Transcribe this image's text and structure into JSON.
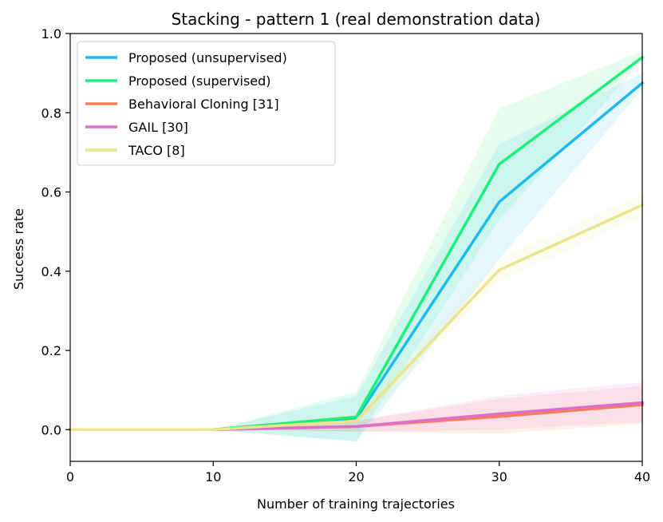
{
  "chart_data": {
    "type": "line",
    "title": "Stacking - pattern 1 (real demonstration data)",
    "xlabel": "Number of training trajectories",
    "ylabel": "Success rate",
    "x": [
      0,
      10,
      20,
      30,
      40
    ],
    "xlim": [
      0,
      40
    ],
    "ylim": [
      -0.08,
      1.0
    ],
    "xticks": [
      "0",
      "10",
      "20",
      "30",
      "40"
    ],
    "yticks": [
      "0.0",
      "0.2",
      "0.4",
      "0.6",
      "0.8",
      "1.0"
    ],
    "grid": false,
    "legend_position": "top-left",
    "series": [
      {
        "name": "Proposed (unsupervised)",
        "color": "#1ebbec",
        "values": [
          0.0,
          0.0,
          0.028,
          0.575,
          0.875
        ],
        "lower": [
          0.0,
          0.0,
          -0.03,
          0.43,
          0.86
        ],
        "upper": [
          0.0,
          0.0,
          0.085,
          0.72,
          0.9
        ]
      },
      {
        "name": "Proposed (supervised)",
        "color": "#1df07a",
        "values": [
          0.0,
          0.0,
          0.032,
          0.67,
          0.94
        ],
        "lower": [
          0.0,
          0.0,
          -0.03,
          0.53,
          0.93
        ],
        "upper": [
          0.0,
          0.0,
          0.095,
          0.81,
          0.955
        ]
      },
      {
        "name": "Behavioral Cloning [31]",
        "color": "#fa7c56",
        "values": [
          0.0,
          0.0,
          0.008,
          0.033,
          0.063
        ],
        "lower": [
          0.0,
          0.0,
          -0.005,
          -0.01,
          0.015
        ],
        "upper": [
          0.0,
          0.0,
          0.022,
          0.078,
          0.11
        ]
      },
      {
        "name": "GAIL [30]",
        "color": "#dc6fcc",
        "values": [
          0.0,
          0.0,
          0.008,
          0.04,
          0.068
        ],
        "lower": [
          0.0,
          0.0,
          -0.005,
          0.0,
          0.02
        ],
        "upper": [
          0.0,
          0.0,
          0.022,
          0.085,
          0.12
        ]
      },
      {
        "name": "TACO [8]",
        "color": "#ece48a",
        "values": [
          0.0,
          0.0,
          0.022,
          0.403,
          0.567
        ],
        "lower": [
          0.0,
          0.0,
          0.0,
          0.375,
          0.54
        ],
        "upper": [
          0.0,
          0.0,
          0.045,
          0.43,
          0.595
        ]
      }
    ]
  }
}
